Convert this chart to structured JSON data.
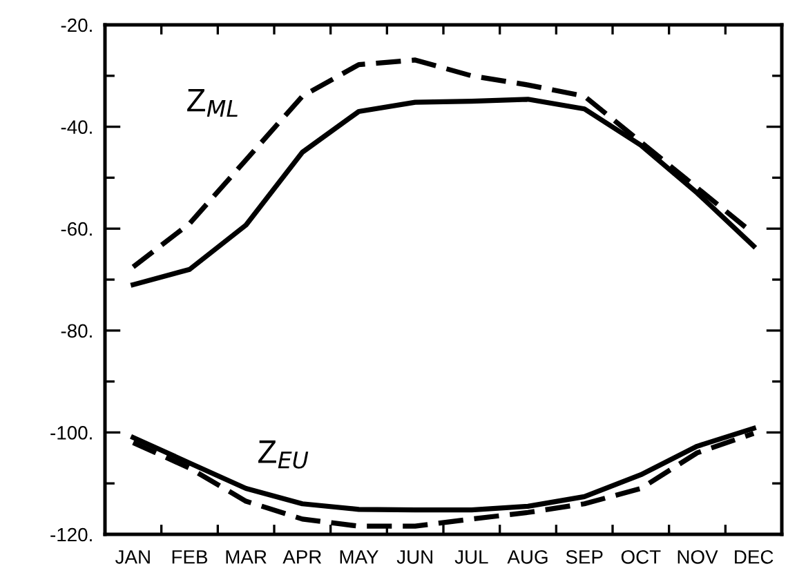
{
  "chart_data": {
    "type": "line",
    "categories": [
      "JAN",
      "FEB",
      "MAR",
      "APR",
      "MAY",
      "JUN",
      "JUL",
      "AUG",
      "SEP",
      "OCT",
      "NOV",
      "DEC"
    ],
    "series": [
      {
        "color": "#000000",
        "line_style": "solid",
        "values": [
          -71,
          -68,
          -59.3,
          -45,
          -37,
          -35.2,
          -35,
          -34.6,
          -36.5,
          -43.6,
          -53,
          -63.4
        ]
      },
      {
        "color": "#000000",
        "line_style": "dashed",
        "values": [
          -67.5,
          -59,
          -46.5,
          -34,
          -27.8,
          -26.9,
          -30,
          -31.8,
          -34,
          -43,
          -52,
          -61
        ]
      },
      {
        "color": "#000000",
        "line_style": "solid",
        "values": [
          -101,
          -106,
          -111,
          -114,
          -115.1,
          -115.2,
          -115.2,
          -114.5,
          -112.6,
          -108.3,
          -102.7,
          -99.2
        ]
      },
      {
        "color": "#000000",
        "line_style": "dashed",
        "values": [
          -102,
          -107,
          -113.5,
          -117,
          -118.4,
          -118.4,
          -117,
          -115.7,
          -114,
          -111,
          -104,
          -100.2
        ]
      }
    ],
    "ylim": [
      -120,
      -20
    ],
    "yticks": [
      {
        "value": -20,
        "label": "-20."
      },
      {
        "value": -30,
        "label": null
      },
      {
        "value": -40,
        "label": "-40."
      },
      {
        "value": -50,
        "label": null
      },
      {
        "value": -60,
        "label": "-60."
      },
      {
        "value": -70,
        "label": null
      },
      {
        "value": -80,
        "label": "-80."
      },
      {
        "value": -90,
        "label": null
      },
      {
        "value": -100,
        "label": "-100."
      },
      {
        "value": -110,
        "label": null
      },
      {
        "value": -120,
        "label": "-120."
      }
    ],
    "annotations": [
      "Z$_{ML}$",
      "Z$_{EU}$"
    ],
    "grid": false,
    "legend": false,
    "marker": "none"
  }
}
